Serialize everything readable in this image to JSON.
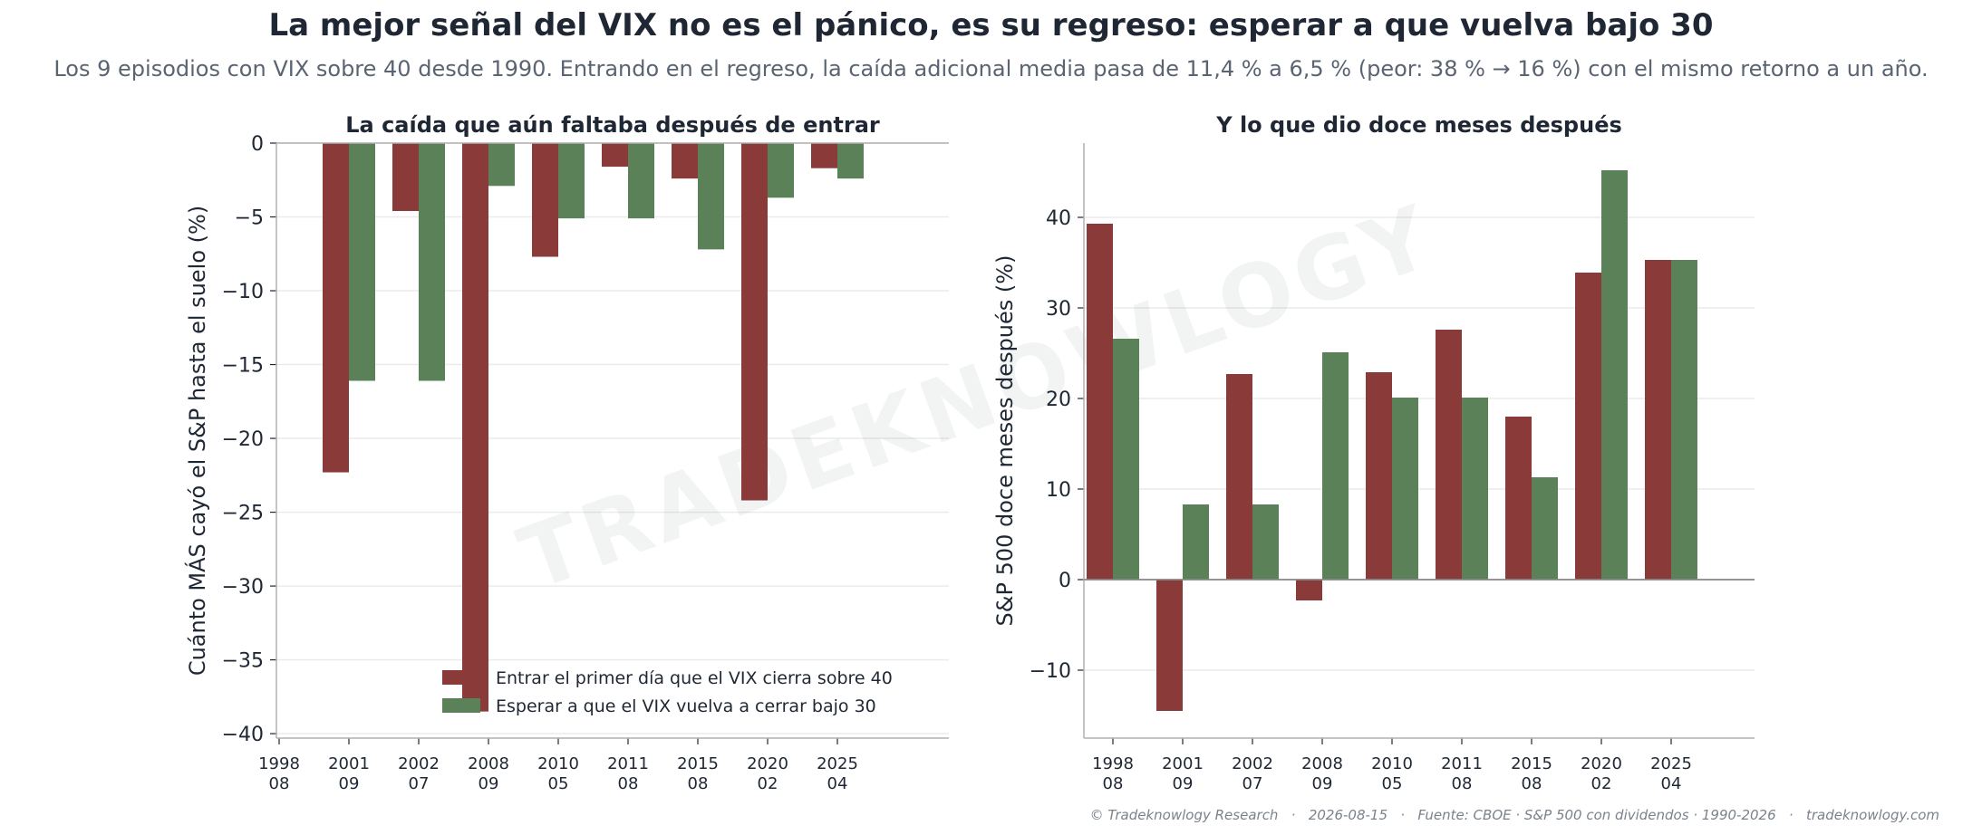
{
  "header": {
    "title": "La mejor señal del VIX no es el pánico, es su regreso: esperar a que vuelva bajo 30",
    "subtitle": "Los 9 episodios con VIX sobre 40 desde 1990. Entrando en el regreso, la caída adicional media pasa de 11,4 % a 6,5 % (peor: 38 % → 16 %) con el mismo retorno a un año."
  },
  "footer": "© Tradeknowlogy Research   ·   2026-08-15   ·   Fuente: CBOE · S&P 500 con dividendos · 1990-2026   ·   tradeknowlogy.com",
  "watermark": "TRADEKNOWLOGY",
  "colors": {
    "entry": "#8b3a3a",
    "wait": "#5b8159",
    "grid": "#ebebeb",
    "axis": "#b0b0b0"
  },
  "chart_data": [
    {
      "type": "bar",
      "title": "La caída que aún faltaba después de entrar",
      "ylabel": "Cuánto MÁS cayó el S&P hasta el suelo (%)",
      "xlabel": "",
      "categories": [
        [
          "1998",
          "08"
        ],
        [
          "2001",
          "09"
        ],
        [
          "2002",
          "07"
        ],
        [
          "2008",
          "09"
        ],
        [
          "2010",
          "05"
        ],
        [
          "2011",
          "08"
        ],
        [
          "2015",
          "08"
        ],
        [
          "2020",
          "02"
        ],
        [
          "2025",
          "04"
        ]
      ],
      "series": [
        {
          "name": "Entrar el primer día que el VIX cierra sobre 40",
          "values": [
            0,
            -22.3,
            -4.6,
            -38.5,
            -7.7,
            -1.6,
            -2.4,
            -24.2,
            -1.7
          ]
        },
        {
          "name": "Esperar a que el VIX vuelva a cerrar bajo 30",
          "values": [
            0,
            -16.1,
            -16.1,
            -2.9,
            -5.1,
            -5.1,
            -7.2,
            -3.7,
            -2.4
          ]
        }
      ],
      "ylim": [
        -40.3,
        0
      ],
      "yticks": [
        0,
        -5,
        -10,
        -15,
        -20,
        -25,
        -30,
        -35,
        -40
      ],
      "grid": "horizontal",
      "legend": "bottom-right"
    },
    {
      "type": "bar",
      "title": "Y lo que dio doce meses después",
      "ylabel": "S&P 500 doce meses después (%)",
      "xlabel": "",
      "categories": [
        [
          "1998",
          "08"
        ],
        [
          "2001",
          "09"
        ],
        [
          "2002",
          "07"
        ],
        [
          "2008",
          "09"
        ],
        [
          "2010",
          "05"
        ],
        [
          "2011",
          "08"
        ],
        [
          "2015",
          "08"
        ],
        [
          "2020",
          "02"
        ],
        [
          "2025",
          "04"
        ]
      ],
      "series": [
        {
          "name": "Entrar el primer día que el VIX cierra sobre 40",
          "values": [
            39.3,
            -14.5,
            22.7,
            -2.3,
            22.9,
            27.6,
            18.0,
            33.9,
            35.3
          ]
        },
        {
          "name": "Esperar a que el VIX vuelva a cerrar bajo 30",
          "values": [
            26.6,
            8.3,
            8.3,
            25.1,
            20.1,
            20.1,
            11.3,
            45.2,
            35.3
          ]
        }
      ],
      "ylim": [
        -17.5,
        48.2
      ],
      "yticks": [
        -10,
        0,
        10,
        20,
        30,
        40
      ],
      "grid": "horizontal",
      "legend": "none"
    }
  ]
}
